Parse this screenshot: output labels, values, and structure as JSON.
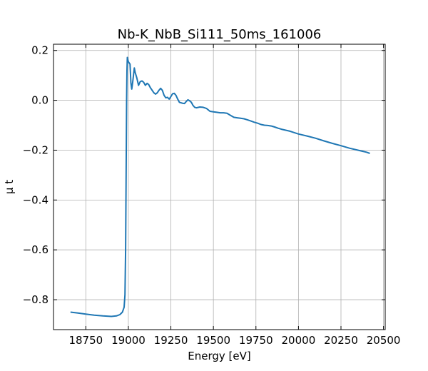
{
  "chart_data": {
    "type": "line",
    "title": "Nb-K_NbB_Si111_50ms_161006",
    "xlabel": "Energy [eV]",
    "ylabel": "μ t",
    "xlim": [
      18560,
      20510
    ],
    "ylim": [
      -0.92,
      0.225
    ],
    "grid": true,
    "x_ticks": [
      {
        "value": 18750,
        "label": "18750"
      },
      {
        "value": 19000,
        "label": "19000"
      },
      {
        "value": 19250,
        "label": "19250"
      },
      {
        "value": 19500,
        "label": "19500"
      },
      {
        "value": 19750,
        "label": "19750"
      },
      {
        "value": 20000,
        "label": "20000"
      },
      {
        "value": 20250,
        "label": "20250"
      },
      {
        "value": 20500,
        "label": "20500"
      }
    ],
    "y_ticks": [
      {
        "value": 0.2,
        "label": "0.2"
      },
      {
        "value": 0.0,
        "label": "0.0"
      },
      {
        "value": -0.2,
        "label": "−0.2"
      },
      {
        "value": -0.4,
        "label": "−0.4"
      },
      {
        "value": -0.6,
        "label": "−0.6"
      },
      {
        "value": -0.8,
        "label": "−0.8"
      }
    ],
    "series": [
      {
        "color": "#1f77b4",
        "x": [
          18660,
          18700,
          18750,
          18800,
          18850,
          18900,
          18930,
          18950,
          18965,
          18975,
          18980,
          18984,
          18987,
          18990,
          18992,
          18994,
          18996,
          19000,
          19005,
          19010,
          19015,
          19020,
          19025,
          19030,
          19035,
          19040,
          19050,
          19060,
          19070,
          19080,
          19090,
          19100,
          19110,
          19120,
          19130,
          19140,
          19150,
          19160,
          19170,
          19180,
          19190,
          19200,
          19210,
          19220,
          19230,
          19240,
          19250,
          19260,
          19270,
          19280,
          19290,
          19300,
          19310,
          19320,
          19330,
          19340,
          19350,
          19360,
          19370,
          19380,
          19390,
          19400,
          19420,
          19440,
          19460,
          19480,
          19500,
          19520,
          19540,
          19560,
          19580,
          19600,
          19620,
          19640,
          19660,
          19680,
          19700,
          19720,
          19740,
          19760,
          19780,
          19800,
          19820,
          19840,
          19860,
          19880,
          19900,
          19950,
          20000,
          20050,
          20100,
          20150,
          20200,
          20250,
          20300,
          20350,
          20400,
          20420
        ],
        "y": [
          -0.85,
          -0.853,
          -0.858,
          -0.862,
          -0.865,
          -0.867,
          -0.865,
          -0.86,
          -0.85,
          -0.83,
          -0.78,
          -0.6,
          -0.3,
          0.0,
          0.12,
          0.172,
          0.165,
          0.155,
          0.15,
          0.145,
          0.07,
          0.045,
          0.07,
          0.1,
          0.13,
          0.112,
          0.09,
          0.06,
          0.075,
          0.078,
          0.072,
          0.06,
          0.068,
          0.063,
          0.05,
          0.04,
          0.03,
          0.025,
          0.03,
          0.04,
          0.048,
          0.04,
          0.02,
          0.01,
          0.012,
          0.005,
          0.015,
          0.026,
          0.028,
          0.02,
          0.005,
          -0.008,
          -0.01,
          -0.012,
          -0.013,
          -0.005,
          0.002,
          -0.002,
          -0.008,
          -0.02,
          -0.028,
          -0.03,
          -0.027,
          -0.028,
          -0.033,
          -0.044,
          -0.046,
          -0.048,
          -0.05,
          -0.05,
          -0.052,
          -0.06,
          -0.068,
          -0.07,
          -0.072,
          -0.074,
          -0.078,
          -0.083,
          -0.088,
          -0.092,
          -0.097,
          -0.1,
          -0.101,
          -0.103,
          -0.107,
          -0.112,
          -0.116,
          -0.124,
          -0.135,
          -0.143,
          -0.152,
          -0.163,
          -0.173,
          -0.182,
          -0.192,
          -0.2,
          -0.208,
          -0.213
        ]
      }
    ]
  }
}
